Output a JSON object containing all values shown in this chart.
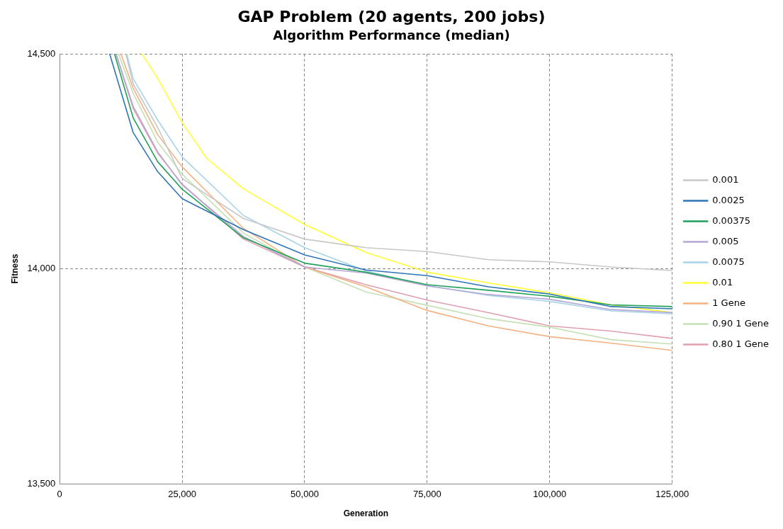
{
  "chart_data": {
    "type": "line",
    "title": "GAP Problem (20 agents, 200 jobs)",
    "subtitle": "Algorithm Performance (median)",
    "xlabel": "Generation",
    "ylabel": "Fitness",
    "xlim": [
      0,
      125000
    ],
    "xticks": [
      {
        "value": 0,
        "label": "0"
      },
      {
        "value": 25000,
        "label": "25,000"
      },
      {
        "value": 50000,
        "label": "50,000"
      },
      {
        "value": 75000,
        "label": "75,000"
      },
      {
        "value": 100000,
        "label": "100,000"
      },
      {
        "value": 125000,
        "label": "125,000"
      }
    ],
    "ylim": [
      13500,
      14500
    ],
    "yticks": [
      {
        "value": 13500,
        "label": "13,500"
      },
      {
        "value": 14000,
        "label": "14,000"
      },
      {
        "value": 14500,
        "label": "14,500"
      }
    ],
    "grid": true,
    "legend": "right",
    "marker": "none",
    "line_style": "solid",
    "series": [
      {
        "name": "0.001",
        "color": "#c8c8c8",
        "x": [
          13500,
          15000,
          20000,
          25000,
          37500,
          50000,
          62500,
          75000,
          87500,
          100000,
          112500,
          125000
        ],
        "values": [
          14500,
          14430,
          14329,
          14210,
          14117,
          14069,
          14049,
          14040,
          14021,
          14016,
          14004,
          13996
        ]
      },
      {
        "name": "0.0025",
        "color": "#2e75b6",
        "x": [
          10200,
          15000,
          20000,
          25000,
          37500,
          50000,
          62500,
          75000,
          87500,
          100000,
          112500,
          125000
        ],
        "values": [
          14500,
          14317,
          14226,
          14163,
          14091,
          14032,
          13997,
          13984,
          13958,
          13941,
          13912,
          13907
        ]
      },
      {
        "name": "0.00375",
        "color": "#21a05a",
        "x": [
          11200,
          15000,
          20000,
          25000,
          37500,
          50000,
          62500,
          75000,
          87500,
          100000,
          112500,
          125000
        ],
        "values": [
          14500,
          14351,
          14249,
          14185,
          14072,
          14013,
          13992,
          13963,
          13950,
          13936,
          13916,
          13912
        ]
      },
      {
        "name": "0.005",
        "color": "#b4a7d6",
        "x": [
          11500,
          15000,
          20000,
          25000,
          37500,
          50000,
          62500,
          75000,
          87500,
          100000,
          112500,
          125000
        ],
        "values": [
          14500,
          14378,
          14272,
          14195,
          14075,
          14004,
          13990,
          13960,
          13940,
          13929,
          13905,
          13898
        ]
      },
      {
        "name": "0.0075",
        "color": "#a9d3e8",
        "x": [
          13700,
          15000,
          20000,
          25000,
          37500,
          50000,
          62500,
          75000,
          87500,
          100000,
          112500,
          125000
        ],
        "values": [
          14500,
          14442,
          14346,
          14260,
          14124,
          14049,
          13995,
          13961,
          13938,
          13924,
          13902,
          13895
        ]
      },
      {
        "name": "0.01",
        "color": "#ffff33",
        "x": [
          16800,
          20000,
          25000,
          30000,
          37500,
          50000,
          62500,
          75000,
          87500,
          100000,
          112500,
          125000
        ],
        "values": [
          14500,
          14443,
          14340,
          14257,
          14186,
          14103,
          14038,
          13992,
          13967,
          13944,
          13916,
          13898
        ]
      },
      {
        "name": "1 Gene",
        "color": "#f4b183",
        "x": [
          12500,
          15000,
          20000,
          25000,
          37500,
          50000,
          62500,
          75000,
          87500,
          100000,
          112500,
          125000
        ],
        "values": [
          14500,
          14420,
          14312,
          14237,
          14094,
          14004,
          13958,
          13903,
          13867,
          13842,
          13827,
          13810
        ]
      },
      {
        "name": "0.90 1 Gene",
        "color": "#c5e0b4",
        "x": [
          12000,
          15000,
          20000,
          25000,
          37500,
          50000,
          62500,
          75000,
          87500,
          100000,
          112500,
          125000
        ],
        "values": [
          14500,
          14408,
          14295,
          14220,
          14083,
          14004,
          13946,
          13915,
          13884,
          13864,
          13835,
          13825
        ]
      },
      {
        "name": "0.80 1 Gene",
        "color": "#e0a0b0",
        "x": [
          11500,
          15000,
          20000,
          25000,
          37500,
          50000,
          62500,
          75000,
          87500,
          100000,
          112500,
          125000
        ],
        "values": [
          14500,
          14373,
          14269,
          14197,
          14069,
          14004,
          13963,
          13927,
          13898,
          13867,
          13855,
          13838
        ]
      }
    ]
  }
}
